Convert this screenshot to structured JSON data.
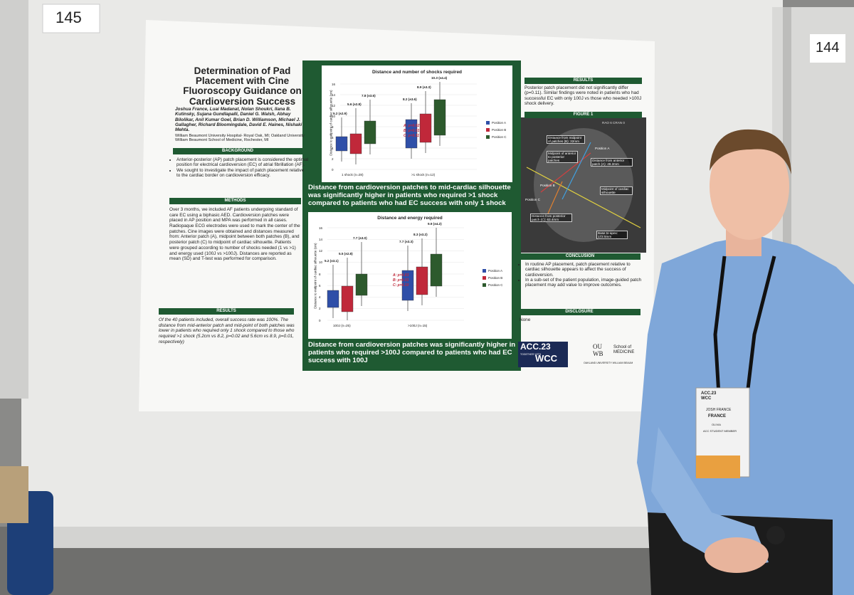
{
  "board_numbers": [
    "145",
    "144"
  ],
  "poster": {
    "title": "Determination of Pad Placement with Cine Fluoroscopy Guidance on Cardioversion Success",
    "authors": "Joshua France, Luai Madanat, Nolan Shoukri, Ilana B. Kutinsky, Sujana Gundlapalli, Daniel G. Walsh, Abhay Bilolikar, Anil Kumar Goel, Brian D. Williamson, Michael J. Gallagher, Richard Bloomingdale, David E. Haines, Nishaki Mehta.",
    "affiliation": "William Beaumont University Hospital- Royal Oak, MI; Oakland University William Beaumont School of Medicine, Rochester, MI",
    "background": {
      "heading": "BACKGROUND",
      "bullets": [
        "Anterior-posterior (AP) patch placement is considered the optimal position for electrical cardioversion (EC) of atrial fibrillation (AF).",
        "We sought to investigate the impact of patch placement relative to the cardiac border on cardioversion efficacy."
      ]
    },
    "methods": {
      "heading": "METHODS",
      "text": "Over 3 months, we included AF patients undergoing standard of care EC using a biphasic AED. Cardioversion patches were placed in AP position and MPA was performed in all cases. Radiopaque ECG electrodes were used to mark the center of the patches. Cine images were obtained and distances measured from: Anterior patch (A), midpoint between both patches (B), and posterior patch (C) to midpoint of cardiac silhouette. Patients were grouped according to number of shocks needed (1 vs >1) and energy used (100J vs >100J). Distances are reported as mean (SD) and T-test was performed for comparison."
    },
    "results": {
      "heading": "RESULTS",
      "text": "Of the 40 patients included, overall success rate was 100%. The distance from mid-anterior patch and mid-point of both patches was lower in patients who required only 1 shock compared to those who required >1 shock (5.2cm vs 8.2, p=0.02 and 5.6cm vs 8.9, p=0.01, respectively)"
    },
    "charts": [
      {
        "title": "Distance and number of shocks required",
        "y_label": "Distance to midpoint of cardiac silhouette (cm)",
        "yticks": [
          "16",
          "14",
          "12",
          "10",
          "8",
          "6",
          "4",
          "2",
          "0"
        ],
        "categories": [
          "1 shock (n=28)",
          ">1 shock (n=12)"
        ],
        "box_labels": [
          "5.2 (±2.9)",
          "5.6 (±2.8)",
          "7.8 (±3.6)",
          "8.2 (±3.6)",
          "8.9 (±3.3)",
          "10.3 (±4.4)"
        ],
        "stats": [
          "A: p=0.02",
          "B: p=0.01",
          "C: p=0.11"
        ],
        "legend": [
          "Position A",
          "Position B",
          "Position C"
        ],
        "caption": "Distance from cardioversion patches to mid-cardiac silhouette was significantly higher in patients who required >1 shock compared to patients who had EC success with only 1 shock"
      },
      {
        "title": "Distance and energy required",
        "y_label": "Distance to midpoint of cardiac silhouette (cm)",
        "yticks": [
          "16",
          "14",
          "12",
          "10",
          "8",
          "6",
          "4",
          "2",
          "0"
        ],
        "categories": [
          "100J (n=25)",
          ">100J (n=15)"
        ],
        "box_labels": [
          "5.2 (±3.1)",
          "5.5 (±2.8)",
          "7.7 (±3.0)",
          "7.7 (±3.3)",
          "8.3 (±3.2)",
          "9.9 (±4.2)"
        ],
        "stats": [
          "A: p=0.03",
          "B: p=0.01",
          "C: p=0.10"
        ],
        "legend": [
          "Position A",
          "Position B",
          "Position C"
        ],
        "caption": "Distance from cardioversion patches was significantly higher in patients who required >100J compared to patients who had EC success with 100J"
      }
    ],
    "right_results": {
      "heading": "RESULTS",
      "text": "Posterior patch placement did not significantly differ (p=0.11). Similar findings were noted in patients who had successful EC with only 100J vs those who needed >100J shock delivery."
    },
    "figure": {
      "heading": "FIGURE 1",
      "labels": [
        "RAO 6 CRAN 0",
        "Distance from midpoint of patches (B): 32mm",
        "Position A",
        "Midpoint of anterior to posterior patches",
        "Distance from anterior patch (A): 49.2mm",
        "Position B",
        "Midpoint of cardiac silhouette",
        "Position C",
        "Distance from posterior patch (C): 63.4mm",
        "Base to apex: 172.5mm"
      ]
    },
    "conclusion": {
      "heading": "CONCLUSION",
      "bullets": [
        "In routine AP placement, patch placement relative to cardiac silhouette appears to affect the success of cardioversion.",
        "In a sub-set of the patient population, image-guided patch placement may add value to improve outcomes."
      ]
    },
    "disclosure": {
      "heading": "DISCLOSURE",
      "text": "None"
    },
    "logos": [
      "ACC.23",
      "TOGETHER WITH",
      "WCC",
      "OU WB",
      "School of MEDICINE",
      "OAKLAND UNIVERSITY WILLIAM BEAUM"
    ]
  },
  "badge": [
    "ACC.23 WCC",
    "JOSH FRANCE",
    "FRANCE",
    "OLIVIA",
    "ACC STUDENT MEMBER"
  ]
}
